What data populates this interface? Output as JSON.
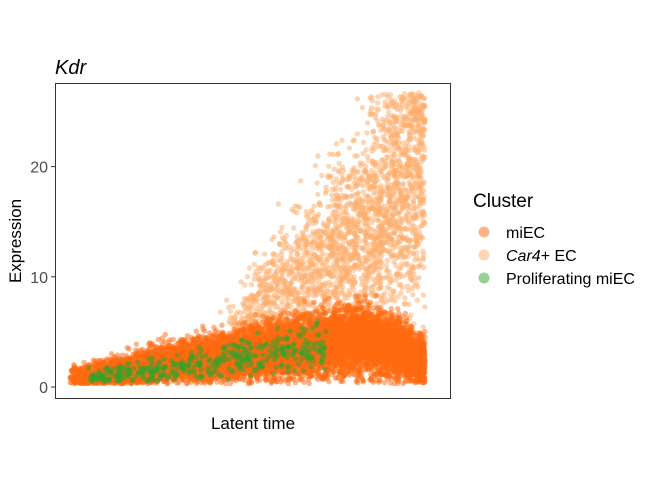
{
  "chart_data": {
    "type": "scatter",
    "title": "Kdr",
    "xlabel": "Latent time",
    "ylabel": "Expression",
    "xlim": [
      0,
      1
    ],
    "ylim": [
      -1,
      27.5
    ],
    "yticks": [
      0,
      10,
      20
    ],
    "x_ticks_shown": false,
    "legend": {
      "title": "Cluster",
      "position": "right",
      "entries": [
        {
          "key": "miEC",
          "label": "miEC",
          "italic_part": "",
          "rest": "miEC",
          "color": "#FF6A10",
          "opacity": 0.5
        },
        {
          "key": "car4",
          "label": "Car4+ EC",
          "italic_part": "Car4",
          "rest": "+ EC",
          "color": "#FDAE6B",
          "opacity": 0.5
        },
        {
          "key": "prolif",
          "label": "Proliferating miEC",
          "italic_part": "",
          "rest": "Proliferating miEC",
          "color": "#31A329",
          "opacity": 0.5
        }
      ]
    },
    "series": [
      {
        "name": "miEC",
        "color": "#FF6A10",
        "n_points": 9000,
        "trend": [
          [
            0.0,
            0.9
          ],
          [
            0.1,
            1.2
          ],
          [
            0.2,
            1.8
          ],
          [
            0.3,
            2.3
          ],
          [
            0.4,
            2.7
          ],
          [
            0.5,
            3.1
          ],
          [
            0.6,
            3.5
          ],
          [
            0.7,
            3.9
          ],
          [
            0.8,
            4.3
          ],
          [
            0.9,
            3.5
          ],
          [
            0.95,
            2.5
          ]
        ],
        "max_expression": 8.5
      },
      {
        "name": "Car4+ EC",
        "color": "#FDAE6B",
        "n_points": 2600,
        "trend": [
          [
            0.4,
            3.5
          ],
          [
            0.5,
            6.0
          ],
          [
            0.6,
            8.5
          ],
          [
            0.7,
            11.0
          ],
          [
            0.8,
            14.0
          ],
          [
            0.9,
            18.0
          ],
          [
            0.95,
            20.0
          ]
        ],
        "max_expression": 26.7
      },
      {
        "name": "Proliferating miEC",
        "color": "#31A329",
        "n_points": 420,
        "trend": [
          [
            0.05,
            1.0
          ],
          [
            0.2,
            1.3
          ],
          [
            0.35,
            2.0
          ],
          [
            0.5,
            2.8
          ],
          [
            0.6,
            3.3
          ],
          [
            0.7,
            4.2
          ]
        ],
        "max_expression": 6.0
      }
    ]
  }
}
